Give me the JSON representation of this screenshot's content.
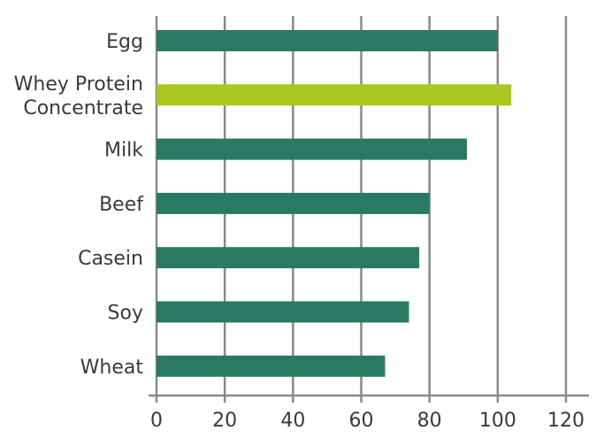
{
  "chart_data": {
    "type": "bar",
    "orientation": "horizontal",
    "title": "",
    "xlabel": "",
    "ylabel": "",
    "categories": [
      [
        "Egg"
      ],
      [
        "Whey Protein",
        "Concentrate"
      ],
      [
        "Milk"
      ],
      [
        "Beef"
      ],
      [
        "Casein"
      ],
      [
        "Soy"
      ],
      [
        "Wheat"
      ]
    ],
    "category_names": [
      "Egg",
      "Whey Protein Concentrate",
      "Milk",
      "Beef",
      "Casein",
      "Soy",
      "Wheat"
    ],
    "values": [
      100,
      104,
      91,
      80,
      77,
      74,
      67
    ],
    "highlight_index": 1,
    "xlim": [
      0,
      120
    ],
    "xticks": [
      0,
      20,
      40,
      60,
      80,
      100,
      120
    ],
    "grid": "vertical",
    "colors": {
      "bar": "#2a7a63",
      "highlight": "#a9c81d",
      "grid": "#8a8a8a",
      "text": "#3a3a3a"
    }
  }
}
